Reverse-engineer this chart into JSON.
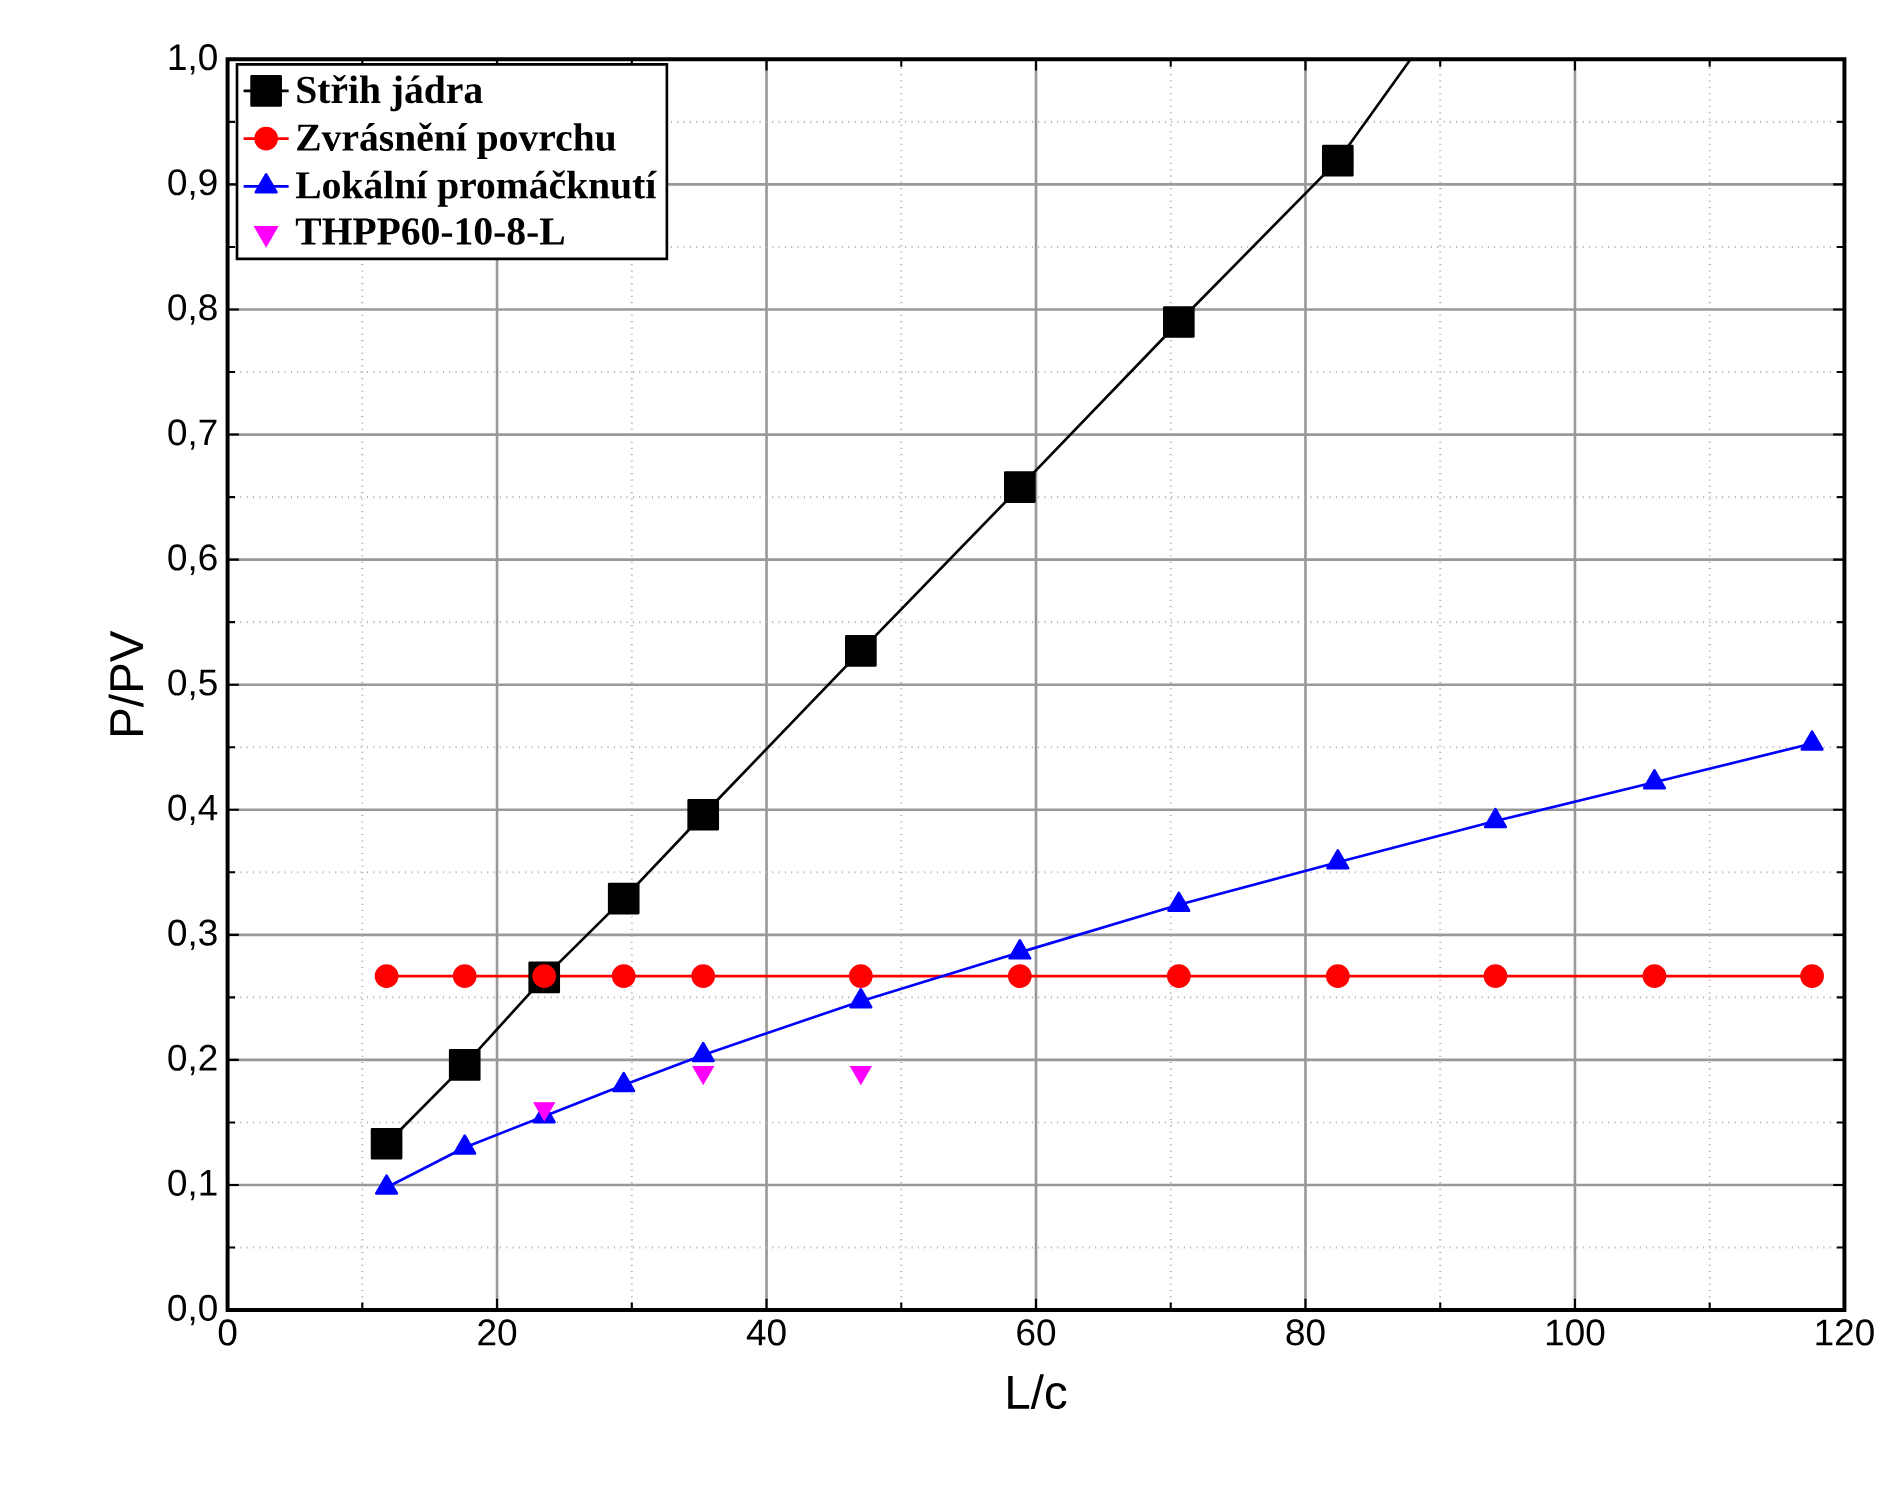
{
  "chart_data": {
    "type": "line",
    "xlabel": "L/c",
    "ylabel": "P/PV",
    "xlim": [
      0,
      120
    ],
    "ylim": [
      0,
      1
    ],
    "xticks": [
      0,
      20,
      40,
      60,
      80,
      100,
      120
    ],
    "yticks": [
      {
        "value": 0,
        "label": "0,0"
      },
      {
        "value": 0.1,
        "label": "0,1"
      },
      {
        "value": 0.2,
        "label": "0,2"
      },
      {
        "value": 0.3,
        "label": "0,3"
      },
      {
        "value": 0.4,
        "label": "0,4"
      },
      {
        "value": 0.5,
        "label": "0,5"
      },
      {
        "value": 0.6,
        "label": "0,6"
      },
      {
        "value": 0.7,
        "label": "0,7"
      },
      {
        "value": 0.8,
        "label": "0,8"
      },
      {
        "value": 0.9,
        "label": "0,9"
      },
      {
        "value": 1,
        "label": "1,0"
      }
    ],
    "grid": true,
    "legend": "top left",
    "series": [
      {
        "name": "Střih jádra",
        "color": "#000000",
        "marker": "square",
        "x": [
          11.8,
          17.6,
          23.5,
          29.4,
          35.3,
          47,
          58.8,
          70.6,
          82.4
        ],
        "values": [
          0.133,
          0.196,
          0.266,
          0.329,
          0.396,
          0.527,
          0.658,
          0.79,
          0.919
        ]
      },
      {
        "type": "line",
        "color": "#000000",
        "marker": "none",
        "x": [
          82.4,
          87.8
        ],
        "values": [
          0.919,
          1.0
        ]
      },
      {
        "name": "Zvrásnění povrchu",
        "color": "#ff0000",
        "marker": "circle",
        "x": [
          11.8,
          17.6,
          23.5,
          29.4,
          35.3,
          47,
          58.8,
          70.6,
          82.4,
          94.1,
          105.9,
          117.6
        ],
        "values": [
          0.267,
          0.267,
          0.267,
          0.267,
          0.267,
          0.267,
          0.267,
          0.267,
          0.267,
          0.267,
          0.267,
          0.267
        ]
      },
      {
        "name": "Lokální promáčknutí",
        "color": "#0000ff",
        "marker": "triangle",
        "x": [
          11.8,
          17.6,
          23.5,
          29.4,
          35.3,
          47,
          58.8,
          70.6,
          82.4,
          94.1,
          105.9,
          117.6
        ],
        "values": [
          0.098,
          0.13,
          0.155,
          0.18,
          0.204,
          0.247,
          0.286,
          0.324,
          0.358,
          0.391,
          0.422,
          0.453
        ]
      },
      {
        "name": "THPP60-10-8-L",
        "type": "scatter",
        "color": "#ff00ff",
        "marker": "triangle-down",
        "x": [
          23.5,
          35.3,
          47
        ],
        "values": [
          0.161,
          0.19,
          0.19
        ]
      }
    ]
  }
}
